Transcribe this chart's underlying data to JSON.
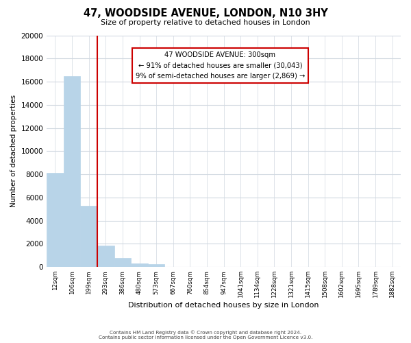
{
  "title": "47, WOODSIDE AVENUE, LONDON, N10 3HY",
  "subtitle": "Size of property relative to detached houses in London",
  "xlabel": "Distribution of detached houses by size in London",
  "ylabel": "Number of detached properties",
  "bin_labels": [
    "12sqm",
    "106sqm",
    "199sqm",
    "293sqm",
    "386sqm",
    "480sqm",
    "573sqm",
    "667sqm",
    "760sqm",
    "854sqm",
    "947sqm",
    "1041sqm",
    "1134sqm",
    "1228sqm",
    "1321sqm",
    "1415sqm",
    "1508sqm",
    "1602sqm",
    "1695sqm",
    "1789sqm",
    "1882sqm"
  ],
  "bar_values": [
    8100,
    16500,
    5300,
    1850,
    800,
    300,
    250,
    0,
    0,
    0,
    0,
    0,
    0,
    0,
    0,
    0,
    0,
    0,
    0,
    0,
    0
  ],
  "bar_color": "#b8d4e8",
  "bar_edge_color": "#b8d4e8",
  "property_line_x": 2.5,
  "property_line_color": "#cc0000",
  "annotation_line1": "47 WOODSIDE AVENUE: 300sqm",
  "annotation_line2": "← 91% of detached houses are smaller (30,043)",
  "annotation_line3": "9% of semi-detached houses are larger (2,869) →",
  "annotation_box_color": "#ffffff",
  "annotation_box_edge_color": "#cc0000",
  "ylim": [
    0,
    20000
  ],
  "yticks": [
    0,
    2000,
    4000,
    6000,
    8000,
    10000,
    12000,
    14000,
    16000,
    18000,
    20000
  ],
  "footer_line1": "Contains HM Land Registry data © Crown copyright and database right 2024.",
  "footer_line2": "Contains public sector information licensed under the Open Government Licence v3.0.",
  "background_color": "#ffffff",
  "grid_color": "#d0d8e0"
}
